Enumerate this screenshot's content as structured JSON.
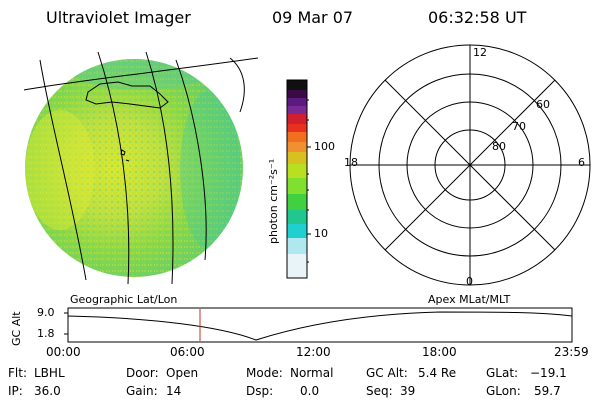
{
  "header": {
    "title": "Ultraviolet Imager",
    "date": "09 Mar 07",
    "time": "06:32:58 UT"
  },
  "colorbar": {
    "unit_label": "photon cm⁻²s⁻¹",
    "ticks": [
      "100",
      "10"
    ],
    "colors": [
      "#101010",
      "#3a0a45",
      "#5a1a80",
      "#7a2a95",
      "#d02030",
      "#e83020",
      "#f07020",
      "#f09030",
      "#d8c020",
      "#b8e020",
      "#80e030",
      "#40d040",
      "#20c890",
      "#20d0d0",
      "#b0e8f0",
      "#e8f4f8"
    ]
  },
  "polar_plot": {
    "mlt_labels": {
      "top": "12",
      "left": "18",
      "right": "6",
      "bottom": "0"
    },
    "lat_labels": [
      "60",
      "70",
      "80"
    ]
  },
  "panel_labels": {
    "left": "Geographic Lat/Lon",
    "right": "Apex MLat/MLT"
  },
  "altitude_plot": {
    "ylabel": "GC Alt",
    "yticks": [
      "9.0",
      "1.8"
    ],
    "xticks": [
      "00:00",
      "06:00",
      "12:00",
      "18:00",
      "23:59"
    ],
    "current_time_marker_hour": 6.55
  },
  "info": {
    "filter_label": "Flt:",
    "filter_value": "LBHL",
    "door_label": "Door:",
    "door_value": "Open",
    "mode_label": "Mode:",
    "mode_value": "Normal",
    "gcalt_label": "GC Alt:",
    "gcalt_value": "5.4 Re",
    "glat_label": "GLat:",
    "glat_value": "−19.1",
    "ip_label": "IP:",
    "ip_value": "36.0",
    "gain_label": "Gain:",
    "gain_value": "14",
    "dsp_label": "Dsp:",
    "dsp_value": "0.0",
    "seq_label": "Seq:",
    "seq_value": "39",
    "glon_label": "GLon:",
    "glon_value": "59.7"
  }
}
